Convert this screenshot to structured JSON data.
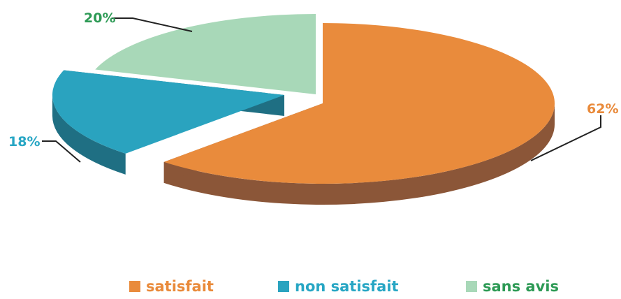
{
  "chart_data": {
    "type": "pie",
    "three_d": true,
    "labels": [
      "satisfait",
      "non satisfait",
      "sans avis"
    ],
    "values": [
      62,
      18,
      20
    ],
    "value_labels": [
      "62%",
      "18%",
      "20%"
    ],
    "colors": [
      "#e98b3c",
      "#2aa3bf",
      "#a8d8b8"
    ],
    "side_colors": [
      "#8b5638",
      "#1f6f83",
      "#6c9e86"
    ],
    "label_colors": [
      "#e98a3a",
      "#27a6c4",
      "#2d9a55"
    ],
    "legend_placement": "bottom"
  }
}
